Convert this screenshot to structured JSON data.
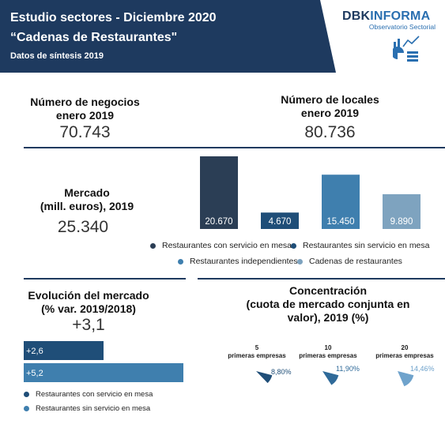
{
  "header": {
    "title": "Estudio sectores - Diciembre 2020",
    "subtitle": "“Cadenas de Restaurantes\"",
    "note": "Datos de síntesis 2019",
    "logo_main_dark": "DBK",
    "logo_main_accent": "INFORMA",
    "logo_sub": "Observatorio Sectorial",
    "colors": {
      "banner": "#1e3a5f",
      "accent": "#2a6fb0"
    },
    "icon": "chart-dashboard-icon"
  },
  "kpis": {
    "negocios": {
      "label_line1": "Número de negocios",
      "label_line2": "enero 2019",
      "value": "70.743"
    },
    "locales": {
      "label_line1": "Número de locales",
      "label_line2": "enero 2019",
      "value": "80.736"
    },
    "mercado": {
      "label_line1": "Mercado",
      "label_line2": "(mill. euros), 2019",
      "value": "25.340"
    },
    "evolucion": {
      "label_line1": "Evolución del mercado",
      "label_line2": "(% var. 2019/2018)",
      "value": "+3,1"
    },
    "concentracion": {
      "label_line1": "Concentración",
      "label_line2": "(cuota de mercado conjunta en",
      "label_line3": "valor), 2019 (%)"
    }
  },
  "chart_data": [
    {
      "type": "bar",
      "title": "",
      "categories": [
        "Restaurantes con servicio en mesa",
        "Restaurantes sin servicio en mesa",
        "Restaurantes independientes",
        "Cadenas de restaurantes"
      ],
      "values": [
        20670,
        4670,
        15450,
        9890
      ],
      "data_labels": [
        "20.670",
        "4.670",
        "15.450",
        "9.890"
      ],
      "colors": [
        "#2b3e55",
        "#1f4e78",
        "#3f7fae",
        "#7ea3bf"
      ],
      "ylim": [
        0,
        20670
      ],
      "grid": false,
      "legend": "bottom"
    },
    {
      "type": "bar",
      "orientation": "horizontal",
      "categories": [
        "Restaurantes con servicio en mesa",
        "Restaurantes sin servicio en mesa"
      ],
      "values": [
        2.6,
        5.2
      ],
      "data_labels": [
        "+2,6",
        "+5,2"
      ],
      "colors": [
        "#1f4e78",
        "#3f7fae"
      ],
      "xlim": [
        0,
        5.2
      ],
      "legend": "bottom"
    },
    {
      "type": "pie",
      "groups": [
        {
          "n": "5",
          "label": "primeras empresas",
          "value": 8.8,
          "value_label": "8,80%",
          "color": "#1f4e78"
        },
        {
          "n": "10",
          "label": "primeras empresas",
          "value": 11.9,
          "value_label": "11,90%",
          "color": "#2f6a99"
        },
        {
          "n": "20",
          "label": "primeras empresas",
          "value": 14.46,
          "value_label": "14,46%",
          "color": "#6fa3cc"
        }
      ]
    }
  ]
}
